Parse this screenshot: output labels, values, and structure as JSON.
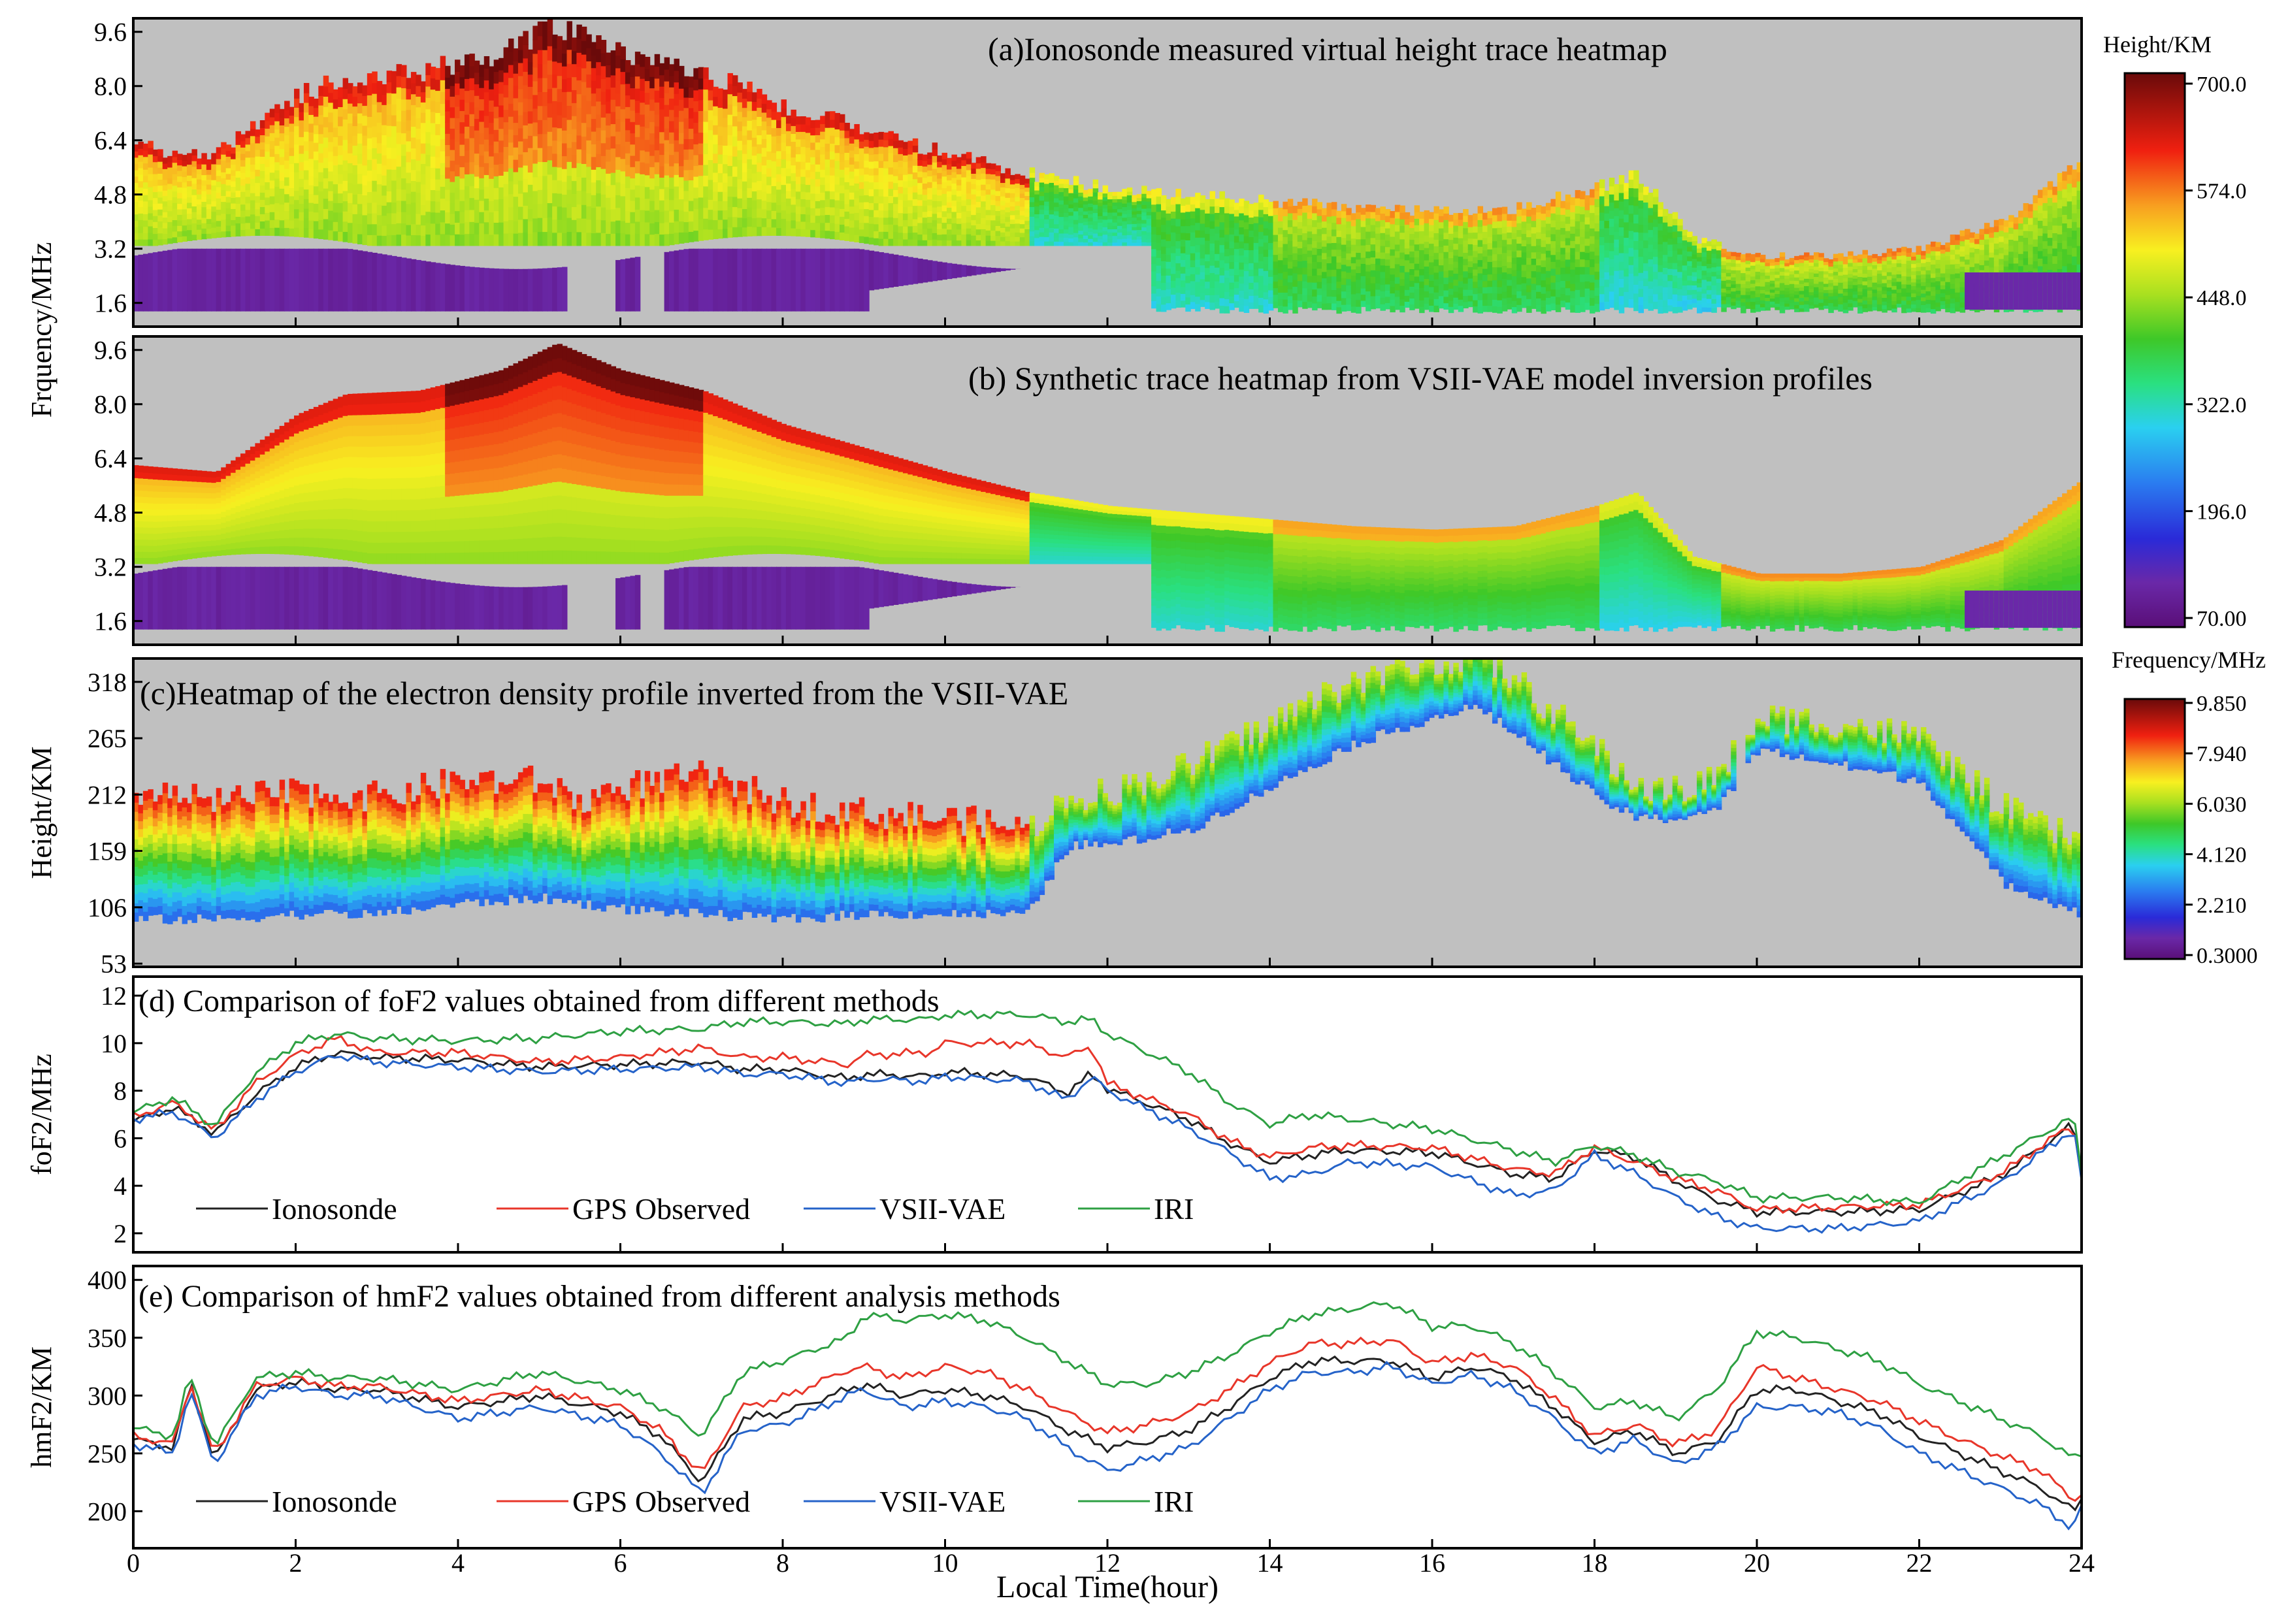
{
  "figure": {
    "x_axis_label": "Local Time(hour)",
    "x_ticks": [
      "0",
      "2",
      "4",
      "6",
      "8",
      "10",
      "12",
      "14",
      "16",
      "18",
      "20",
      "22",
      "24"
    ]
  },
  "chart_data": [
    {
      "id": "a",
      "type": "heatmap",
      "title": "(a)Ionosonde measured virtual height trace heatmap",
      "ylabel": "Frquency/MHz",
      "y_ticks": [
        "9.6",
        "8.0",
        "6.4",
        "4.8",
        "3.2",
        "1.6"
      ],
      "ylim": [
        0.9,
        10.0
      ],
      "xlim": [
        0,
        24
      ],
      "value_unit": "Height/KM",
      "value_range": [
        70,
        700
      ],
      "profile": {
        "hours": [
          0,
          1,
          2,
          2.6,
          3.5,
          4.5,
          5.2,
          6,
          7,
          8,
          9,
          10,
          11,
          12,
          13,
          14,
          15,
          16,
          17,
          18,
          18.5,
          19.2,
          20,
          21,
          22,
          23,
          24
        ],
        "foF2": [
          6.2,
          6.0,
          7.7,
          8.3,
          8.4,
          9.0,
          9.8,
          9.0,
          8.4,
          7.4,
          6.7,
          6.0,
          5.4,
          5.0,
          4.8,
          4.6,
          4.4,
          4.3,
          4.4,
          5.0,
          5.4,
          3.5,
          3.0,
          3.0,
          3.2,
          4.0,
          5.8
        ],
        "fmin": [
          1.3,
          1.3,
          1.4,
          1.4,
          1.4,
          1.4,
          1.4,
          1.5,
          1.5,
          1.5,
          1.5,
          1.5,
          1.5,
          1.5,
          1.5,
          1.5,
          1.5,
          1.5,
          1.5,
          1.5,
          1.5,
          1.5,
          1.5,
          1.5,
          1.5,
          1.5,
          1.4
        ],
        "E_layer_hours": [
          0,
          12.5
        ]
      }
    },
    {
      "id": "b",
      "type": "heatmap",
      "title": "(b) Synthetic trace heatmap from VSII-VAE model inversion profiles",
      "ylabel": "",
      "y_ticks": [
        "9.6",
        "8.0",
        "6.4",
        "4.8",
        "3.2",
        "1.6"
      ],
      "ylim": [
        0.9,
        10.0
      ],
      "xlim": [
        0,
        24
      ],
      "value_unit": "Height/KM",
      "value_range": [
        70,
        700
      ],
      "colorbar_label": "Height/KM",
      "colorbar_ticks": [
        "700.0",
        "574.0",
        "448.0",
        "322.0",
        "196.0",
        "70.00"
      ]
    },
    {
      "id": "c",
      "type": "heatmap",
      "title": "(c)Heatmap of the electron density profile inverted from the VSII-VAE",
      "ylabel": "Height/KM",
      "y_ticks": [
        "318",
        "265",
        "212",
        "159",
        "106",
        "53"
      ],
      "ylim": [
        50,
        340
      ],
      "xlim": [
        0,
        24
      ],
      "value_unit": "Frequency/MHz",
      "value_range": [
        0.3,
        9.85
      ],
      "colorbar_label": "Frequency/MHz",
      "colorbar_ticks": [
        "9.850",
        "7.940",
        "6.030",
        "4.120",
        "2.210",
        "0.3000"
      ],
      "profile": {
        "hours": [
          0,
          1,
          2,
          3,
          4,
          5,
          5.5,
          6,
          7,
          8,
          9,
          10,
          11,
          11.5,
          12,
          13,
          14,
          15,
          16,
          16.5,
          17,
          18,
          18.5,
          19,
          19.5,
          20,
          21,
          22,
          23,
          24
        ],
        "top": [
          215,
          205,
          215,
          210,
          225,
          225,
          205,
          220,
          230,
          205,
          195,
          190,
          180,
          210,
          215,
          240,
          280,
          320,
          335,
          345,
          320,
          255,
          220,
          215,
          230,
          285,
          280,
          265,
          200,
          165
        ],
        "bottom": [
          95,
          95,
          100,
          100,
          110,
          115,
          110,
          105,
          100,
          95,
          100,
          100,
          100,
          165,
          165,
          180,
          220,
          260,
          285,
          295,
          270,
          210,
          190,
          190,
          200,
          255,
          240,
          225,
          130,
          100
        ]
      }
    },
    {
      "id": "d",
      "type": "line",
      "title": "(d) Comparison of foF2 values obtained from different  methods",
      "ylabel": "foF2/MHz",
      "y_ticks": [
        "12",
        "10",
        "8",
        "6",
        "4",
        "2"
      ],
      "ylim": [
        1.2,
        12.8
      ],
      "xlim": [
        0,
        24
      ],
      "legend_position": "bottom-left",
      "x": [
        0,
        0.5,
        1,
        1.5,
        2,
        2.5,
        3,
        4,
        5,
        6,
        7,
        7.5,
        8,
        8.8,
        9,
        9.8,
        10,
        11,
        11.5,
        11.8,
        12,
        13,
        13.5,
        14,
        14.5,
        15,
        16,
        17,
        17.5,
        18,
        18.5,
        19,
        19.5,
        20,
        21,
        22,
        23,
        23.9,
        24
      ],
      "series": [
        {
          "name": "Ionosonde",
          "color": "#222222",
          "values": [
            6.7,
            7.3,
            6.2,
            7.8,
            9.0,
            9.6,
            9.4,
            9.3,
            9.0,
            9.1,
            9.2,
            8.9,
            8.9,
            8.5,
            8.7,
            8.6,
            8.8,
            8.6,
            7.9,
            8.7,
            8.1,
            6.8,
            5.8,
            5.0,
            5.3,
            5.5,
            5.4,
            4.5,
            4.3,
            5.5,
            5.2,
            4.2,
            3.4,
            2.9,
            2.9,
            3.0,
            4.4,
            6.6,
            4.4
          ]
        },
        {
          "name": "GPS Observed",
          "color": "#e8362a",
          "values": [
            6.9,
            7.5,
            6.3,
            8.3,
            9.5,
            10.2,
            9.6,
            9.6,
            9.2,
            9.4,
            9.8,
            9.4,
            9.4,
            9.1,
            9.5,
            9.6,
            10.0,
            10.0,
            9.4,
            9.9,
            8.3,
            7.0,
            5.9,
            5.2,
            5.6,
            5.7,
            5.6,
            4.7,
            4.5,
            5.6,
            5.0,
            4.3,
            3.8,
            3.0,
            3.1,
            3.2,
            4.5,
            6.6,
            4.4
          ]
        },
        {
          "name": "VSII-VAE",
          "color": "#2563c9",
          "values": [
            6.8,
            7.1,
            6.0,
            7.6,
            8.8,
            9.5,
            9.2,
            9.0,
            8.8,
            8.9,
            9.0,
            8.7,
            8.7,
            8.3,
            8.5,
            8.4,
            8.6,
            8.4,
            7.6,
            8.6,
            8.0,
            6.4,
            5.4,
            4.3,
            4.5,
            5.0,
            4.8,
            3.6,
            3.8,
            5.3,
            4.5,
            3.5,
            2.7,
            2.2,
            2.2,
            2.5,
            4.1,
            6.4,
            4.2
          ]
        },
        {
          "name": "IRI",
          "color": "#2ea043",
          "values": [
            7.1,
            7.7,
            6.5,
            8.7,
            10.0,
            10.4,
            10.2,
            10.1,
            10.2,
            10.5,
            10.6,
            10.9,
            10.9,
            10.8,
            11.0,
            11.0,
            11.2,
            11.2,
            10.9,
            11.0,
            10.4,
            8.8,
            7.5,
            6.6,
            7.0,
            6.8,
            6.4,
            5.5,
            5.0,
            5.7,
            5.3,
            4.6,
            4.2,
            3.5,
            3.5,
            3.3,
            5.2,
            6.9,
            4.6
          ]
        }
      ]
    },
    {
      "id": "e",
      "type": "line",
      "title": "(e) Comparison of hmF2 values obtained from different analysis methods",
      "ylabel": "hmF2/KM",
      "y_ticks": [
        "400",
        "350",
        "300",
        "250",
        "200"
      ],
      "ylim": [
        168,
        412
      ],
      "xlim": [
        0,
        24
      ],
      "legend_position": "bottom-left",
      "x": [
        0,
        0.5,
        0.7,
        1,
        1.5,
        2,
        2.5,
        3,
        4,
        5,
        6,
        6.5,
        7,
        7.5,
        8,
        8.8,
        9,
        9.5,
        10,
        10.5,
        11,
        11.5,
        12,
        12.5,
        13,
        13.5,
        14,
        14.5,
        15,
        15.5,
        16,
        16.5,
        17,
        17.5,
        18,
        18.5,
        19,
        19.5,
        20,
        20.5,
        21,
        21.5,
        22,
        22.5,
        23,
        23.5,
        23.9,
        24
      ],
      "series": [
        {
          "name": "Ionosonde",
          "color": "#222222",
          "values": [
            262,
            255,
            310,
            245,
            305,
            312,
            305,
            305,
            290,
            300,
            285,
            265,
            225,
            280,
            285,
            305,
            310,
            300,
            305,
            300,
            290,
            270,
            255,
            260,
            270,
            290,
            315,
            330,
            330,
            330,
            315,
            325,
            315,
            290,
            260,
            270,
            250,
            260,
            305,
            305,
            295,
            285,
            265,
            250,
            235,
            220,
            200,
            210
          ]
        },
        {
          "name": "GPS Observed",
          "color": "#e8362a",
          "values": [
            265,
            258,
            312,
            248,
            308,
            315,
            308,
            308,
            295,
            305,
            290,
            270,
            232,
            290,
            298,
            322,
            325,
            315,
            325,
            320,
            305,
            285,
            268,
            275,
            285,
            305,
            328,
            345,
            345,
            348,
            328,
            335,
            325,
            298,
            265,
            275,
            258,
            270,
            325,
            315,
            305,
            295,
            278,
            262,
            248,
            235,
            210,
            215
          ]
        },
        {
          "name": "VSII-VAE",
          "color": "#2563c9",
          "values": [
            258,
            250,
            305,
            240,
            300,
            308,
            300,
            300,
            280,
            290,
            275,
            250,
            215,
            270,
            275,
            300,
            305,
            290,
            295,
            290,
            280,
            255,
            235,
            245,
            255,
            280,
            305,
            320,
            320,
            325,
            310,
            318,
            305,
            280,
            250,
            262,
            240,
            255,
            290,
            290,
            285,
            272,
            250,
            235,
            220,
            205,
            185,
            205
          ]
        },
        {
          "name": "IRI",
          "color": "#2ea043",
          "values": [
            272,
            265,
            318,
            255,
            315,
            320,
            315,
            315,
            305,
            320,
            305,
            290,
            265,
            320,
            330,
            350,
            370,
            365,
            370,
            365,
            350,
            330,
            310,
            310,
            320,
            335,
            355,
            370,
            375,
            380,
            360,
            360,
            345,
            320,
            290,
            295,
            280,
            305,
            355,
            350,
            340,
            330,
            310,
            295,
            280,
            265,
            245,
            250
          ]
        }
      ]
    }
  ]
}
